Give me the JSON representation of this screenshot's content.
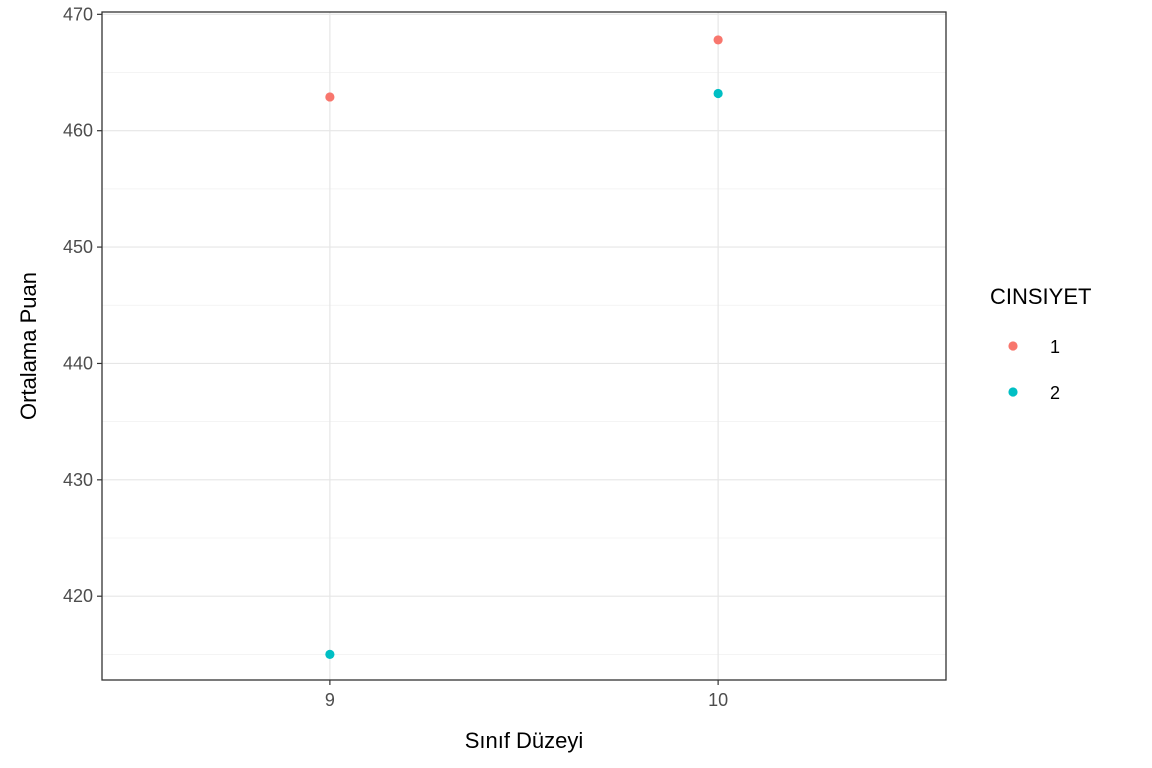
{
  "chart_data": {
    "type": "scatter",
    "xlabel": "Sınıf Düzeyi",
    "ylabel": "Ortalama Puan",
    "categories": [
      "9",
      "10"
    ],
    "ylim": [
      412.8,
      470.2
    ],
    "yticks": [
      420,
      430,
      440,
      450,
      460,
      470
    ],
    "grid": true,
    "legend": {
      "title": "CINSIYET",
      "position": "right"
    },
    "series": [
      {
        "name": "1",
        "color": "#F8766D",
        "values": [
          462.9,
          467.8
        ]
      },
      {
        "name": "2",
        "color": "#00BFC4",
        "values": [
          415.0,
          463.2
        ]
      }
    ]
  }
}
